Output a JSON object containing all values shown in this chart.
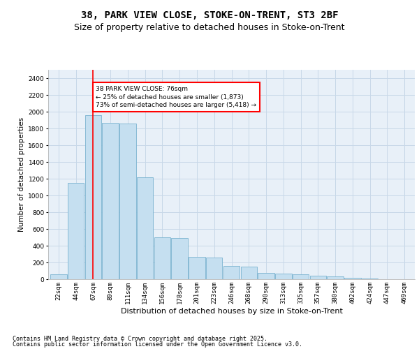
{
  "title_line1": "38, PARK VIEW CLOSE, STOKE-ON-TRENT, ST3 2BF",
  "title_line2": "Size of property relative to detached houses in Stoke-on-Trent",
  "xlabel": "Distribution of detached houses by size in Stoke-on-Trent",
  "ylabel": "Number of detached properties",
  "categories": [
    "22sqm",
    "44sqm",
    "67sqm",
    "89sqm",
    "111sqm",
    "134sqm",
    "156sqm",
    "178sqm",
    "201sqm",
    "223sqm",
    "246sqm",
    "268sqm",
    "290sqm",
    "313sqm",
    "335sqm",
    "357sqm",
    "380sqm",
    "402sqm",
    "424sqm",
    "447sqm",
    "469sqm"
  ],
  "values": [
    55,
    1150,
    1960,
    1870,
    1860,
    1220,
    500,
    490,
    270,
    260,
    155,
    150,
    75,
    70,
    60,
    45,
    35,
    20,
    8,
    4,
    2
  ],
  "bar_color": "#c5dff0",
  "bar_edge_color": "#7ab3d0",
  "vline_x_index": 2,
  "vline_color": "red",
  "annotation_text": "38 PARK VIEW CLOSE: 76sqm\n← 25% of detached houses are smaller (1,873)\n73% of semi-detached houses are larger (5,418) →",
  "annotation_box_color": "white",
  "annotation_box_edge_color": "red",
  "ylim": [
    0,
    2500
  ],
  "yticks": [
    0,
    200,
    400,
    600,
    800,
    1000,
    1200,
    1400,
    1600,
    1800,
    2000,
    2200,
    2400
  ],
  "grid_color": "#c8d8e8",
  "bg_color": "#e8f0f8",
  "footer_line1": "Contains HM Land Registry data © Crown copyright and database right 2025.",
  "footer_line2": "Contains public sector information licensed under the Open Government Licence v3.0.",
  "title_fontsize": 10,
  "subtitle_fontsize": 9,
  "tick_fontsize": 6.5,
  "ylabel_fontsize": 7.5,
  "xlabel_fontsize": 8,
  "annot_fontsize": 6.5,
  "footer_fontsize": 6
}
